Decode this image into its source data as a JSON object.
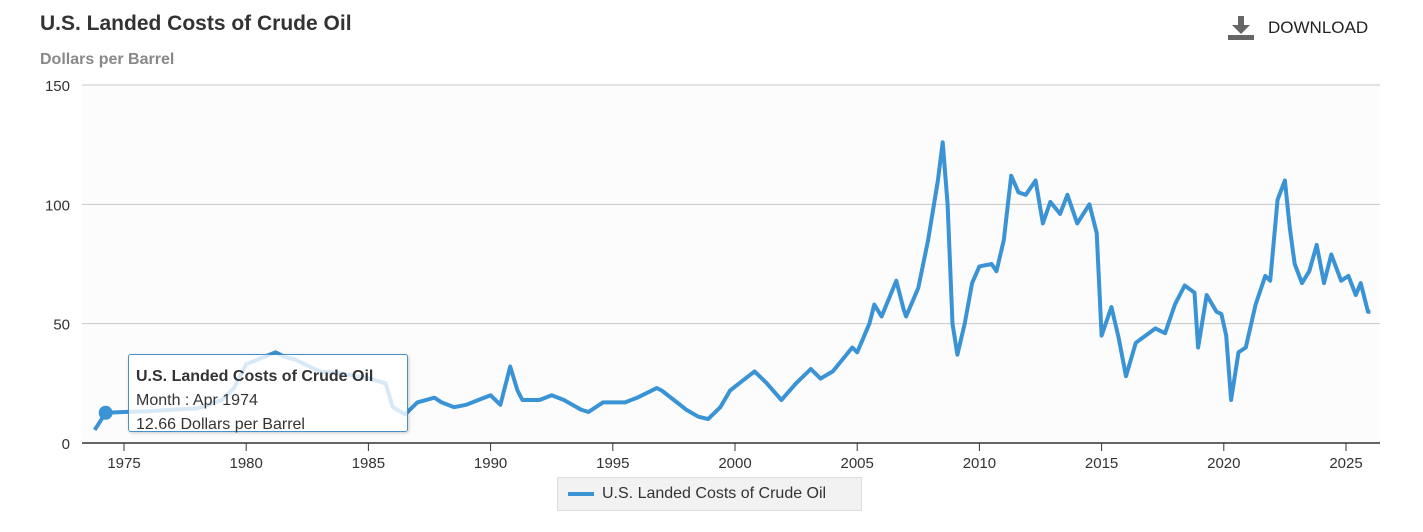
{
  "header": {
    "title": "U.S. Landed Costs of Crude Oil",
    "subtitle": "Dollars per Barrel",
    "download_label": "DOWNLOAD"
  },
  "tooltip": {
    "title": "U.S. Landed Costs of Crude Oil",
    "month": "Month : Apr 1974",
    "value": "12.66 Dollars per Barrel"
  },
  "colors": {
    "series": "#3a93d4",
    "grid": "#c8c8c8"
  },
  "chart_data": {
    "type": "line",
    "title": "U.S. Landed Costs of Crude Oil",
    "ylabel": "Dollars per Barrel",
    "xlim": [
      1973.3,
      2026.5
    ],
    "ylim": [
      0,
      150
    ],
    "yticks": [
      0,
      50,
      100,
      150
    ],
    "xticks": [
      1975,
      1980,
      1985,
      1990,
      1995,
      2000,
      2005,
      2010,
      2015,
      2020,
      2025
    ],
    "legend": "bottom-center",
    "highlight": {
      "x": 1974.25,
      "y": 12.66
    },
    "series": [
      {
        "name": "U.S. Landed Costs of Crude Oil",
        "x": [
          1973.8,
          1974.25,
          1975,
          1976,
          1977,
          1978,
          1979,
          1979.5,
          1980,
          1981.2,
          1981.6,
          1982,
          1983,
          1984,
          1985,
          1985.7,
          1986,
          1986.5,
          1987,
          1987.7,
          1988,
          1988.5,
          1989,
          1989.5,
          1990,
          1990.4,
          1990.8,
          1991.1,
          1991.3,
          1992,
          1992.5,
          1993,
          1993.7,
          1994,
          1994.6,
          1995,
          1995.5,
          1996,
          1996.8,
          1997,
          1997.5,
          1998,
          1998.5,
          1998.9,
          1999.4,
          1999.8,
          2000.3,
          2000.8,
          2001.3,
          2001.9,
          2002.5,
          2003.1,
          2003.5,
          2004,
          2004.8,
          2005,
          2005.5,
          2005.7,
          2006,
          2006.6,
          2006.9,
          2007,
          2007.5,
          2007.9,
          2008.3,
          2008.5,
          2008.7,
          2008.9,
          2009.1,
          2009.4,
          2009.7,
          2010,
          2010.5,
          2010.7,
          2011,
          2011.3,
          2011.6,
          2011.9,
          2012.3,
          2012.6,
          2012.9,
          2013.3,
          2013.6,
          2014,
          2014.5,
          2014.8,
          2015,
          2015.4,
          2015.7,
          2016,
          2016.4,
          2016.8,
          2017.2,
          2017.6,
          2018,
          2018.4,
          2018.8,
          2018.95,
          2019.3,
          2019.7,
          2019.9,
          2020.1,
          2020.3,
          2020.6,
          2020.9,
          2021.3,
          2021.7,
          2021.9,
          2022.2,
          2022.5,
          2022.7,
          2022.9,
          2023.2,
          2023.5,
          2023.8,
          2024.1,
          2024.4,
          2024.8,
          2025.1,
          2025.4,
          2025.6,
          2025.9,
          2026
        ],
        "y": [
          5.5,
          12.66,
          13,
          13.3,
          14,
          14.5,
          18,
          23,
          33,
          38,
          36,
          35,
          30,
          29,
          27,
          25,
          15,
          12,
          17,
          19,
          17,
          15,
          16,
          18,
          20,
          16,
          32,
          22,
          18,
          18,
          20,
          18,
          14,
          13,
          17,
          17,
          17,
          19,
          23,
          22,
          18,
          14,
          11,
          10,
          15,
          22,
          26,
          30,
          25,
          18,
          25,
          31,
          27,
          30,
          40,
          38,
          50,
          58,
          53,
          68,
          56,
          53,
          65,
          85,
          110,
          126,
          100,
          50,
          37,
          50,
          67,
          74,
          75,
          72,
          85,
          112,
          105,
          104,
          110,
          92,
          101,
          96,
          104,
          92,
          100,
          88,
          45,
          57,
          44,
          28,
          42,
          45,
          48,
          46,
          58,
          66,
          63,
          40,
          62,
          55,
          54,
          45,
          18,
          38,
          40,
          58,
          70,
          68,
          102,
          110,
          90,
          75,
          67,
          72,
          83,
          67,
          79,
          68,
          70,
          62,
          67,
          55,
          55
        ]
      }
    ]
  }
}
